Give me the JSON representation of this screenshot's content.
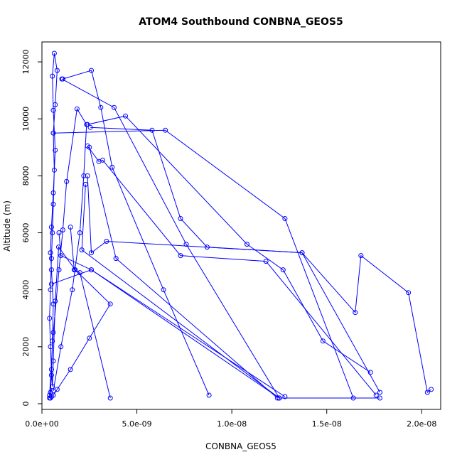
{
  "chart_data": {
    "type": "line",
    "title": "ATOM4 Southbound CONBNA_GEOS5",
    "xlabel": "CONBNA_GEOS5",
    "ylabel": "Altitude (m)",
    "xlim": [
      0,
      2.1e-08
    ],
    "ylim": [
      -200,
      12700
    ],
    "x_ticks": [
      0,
      5e-09,
      1e-08,
      1.5e-08,
      2e-08
    ],
    "x_tick_labels": [
      "0.0e+00",
      "5.0e-09",
      "1.0e-08",
      "1.5e-08",
      "2.0e-08"
    ],
    "y_ticks": [
      0,
      2000,
      4000,
      6000,
      8000,
      10000,
      12000
    ],
    "y_tick_labels": [
      "0",
      "2000",
      "4000",
      "6000",
      "8000",
      "10000",
      "12000"
    ],
    "grid": false,
    "series": [
      {
        "color": "#0000ff",
        "marker": "open-circle",
        "x": [
          4e-10,
          4.5e-10,
          5e-10,
          5.5e-10,
          6e-10,
          5e-10,
          4.5e-10,
          5e-10,
          6e-10,
          7e-10,
          6e-10,
          5.5e-10,
          6.5e-10,
          8e-10,
          7e-10,
          6e-10,
          6.5e-10,
          6e-10,
          5.5e-10,
          5e-10,
          4.5e-10,
          4e-10,
          4.5e-10,
          5e-10,
          5.5e-10,
          6e-10,
          7e-10,
          8.8e-10,
          1.75e-09,
          3.6e-09,
          2.5e-09,
          1.5e-09,
          8e-10,
          6e-10,
          5e-10,
          4.5e-10
        ],
        "y": [
          200,
          400,
          1000,
          2200,
          3500,
          4700,
          5300,
          6200,
          7400,
          8900,
          10300,
          11500,
          12300,
          11700,
          10500,
          9500,
          8200,
          7000,
          6000,
          5100,
          4000,
          3000,
          2000,
          1200,
          600,
          1500,
          3600,
          5500,
          4700,
          3500,
          2300,
          1200,
          500,
          300,
          250,
          200
        ]
      },
      {
        "color": "#0000ff",
        "marker": "open-circle",
        "x": [
          4e-10,
          6e-10,
          9e-10,
          1.1e-09,
          1.3e-09,
          1.85e-09,
          2.35e-09,
          2.2e-09,
          2e-09,
          1.6e-09,
          1e-09,
          6e-10
        ],
        "y": [
          300,
          2500,
          4700,
          6100,
          7800,
          10350,
          9800,
          8000,
          6000,
          4000,
          2000,
          450
        ]
      },
      {
        "color": "#0000ff",
        "marker": "open-circle",
        "x": [
          1.1e-09,
          2.6e-09,
          3.1e-09,
          3.7e-09,
          6.4e-09,
          8.8e-09
        ],
        "y": [
          11400,
          11700,
          10400,
          8300,
          4000,
          300
        ]
      },
      {
        "color": "#0000ff",
        "marker": "open-circle",
        "x": [
          1.05e-09,
          3.8e-09,
          7.6e-09,
          1.25e-08
        ],
        "y": [
          11400,
          10400,
          5600,
          200
        ]
      },
      {
        "color": "#0000ff",
        "marker": "open-circle",
        "x": [
          2.4e-09,
          4.4e-09,
          1.08e-08,
          1.27e-08,
          1.48e-08,
          1.73e-08
        ],
        "y": [
          9800,
          10100,
          5600,
          4700,
          2200,
          1100
        ]
      },
      {
        "color": "#0000ff",
        "marker": "open-circle",
        "x": [
          2.55e-09,
          5.8e-09,
          7.3e-09,
          8.7e-09,
          1.37e-08,
          1.78e-08
        ],
        "y": [
          9700,
          9600,
          6500,
          5500,
          5300,
          400
        ]
      },
      {
        "color": "#0000ff",
        "marker": "open-circle",
        "x": [
          6e-10,
          6.5e-09,
          1.28e-08,
          1.64e-08
        ],
        "y": [
          9500,
          9600,
          6500,
          200
        ]
      },
      {
        "color": "#0000ff",
        "marker": "open-circle",
        "x": [
          2.4e-09,
          3e-09,
          3.2e-09,
          7.3e-09,
          1.18e-08,
          1.76e-08
        ],
        "y": [
          9050,
          8500,
          8550,
          5200,
          5000,
          300
        ]
      },
      {
        "color": "#0000ff",
        "marker": "open-circle",
        "x": [
          2.5e-09,
          3.9e-09,
          1.24e-08
        ],
        "y": [
          9000,
          5100,
          200
        ]
      },
      {
        "color": "#0000ff",
        "marker": "open-circle",
        "x": [
          2.4e-09,
          2.6e-09,
          3.4e-09,
          1.37e-08,
          1.65e-08,
          1.68e-08,
          1.93e-08,
          2.03e-08,
          2.05e-08
        ],
        "y": [
          8000,
          5300,
          5700,
          5300,
          3200,
          5200,
          3900,
          400,
          500
        ]
      },
      {
        "color": "#0000ff",
        "marker": "open-circle",
        "x": [
          2.3e-09,
          2.1e-09,
          1.25e-08,
          1.78e-08
        ],
        "y": [
          7700,
          5400,
          200,
          200
        ]
      },
      {
        "color": "#0000ff",
        "marker": "open-circle",
        "x": [
          1.5e-09,
          1.7e-09,
          2e-09,
          3.6e-09
        ],
        "y": [
          6200,
          4700,
          4600,
          200
        ]
      },
      {
        "color": "#0000ff",
        "marker": "open-circle",
        "x": [
          9e-10,
          1e-09,
          2.6e-09,
          1.25e-08
        ],
        "y": [
          6000,
          5200,
          4700,
          200
        ]
      },
      {
        "color": "#0000ff",
        "marker": "open-circle",
        "x": [
          5e-10,
          2.6e-09,
          1.28e-08
        ],
        "y": [
          4200,
          4700,
          250
        ]
      }
    ]
  }
}
